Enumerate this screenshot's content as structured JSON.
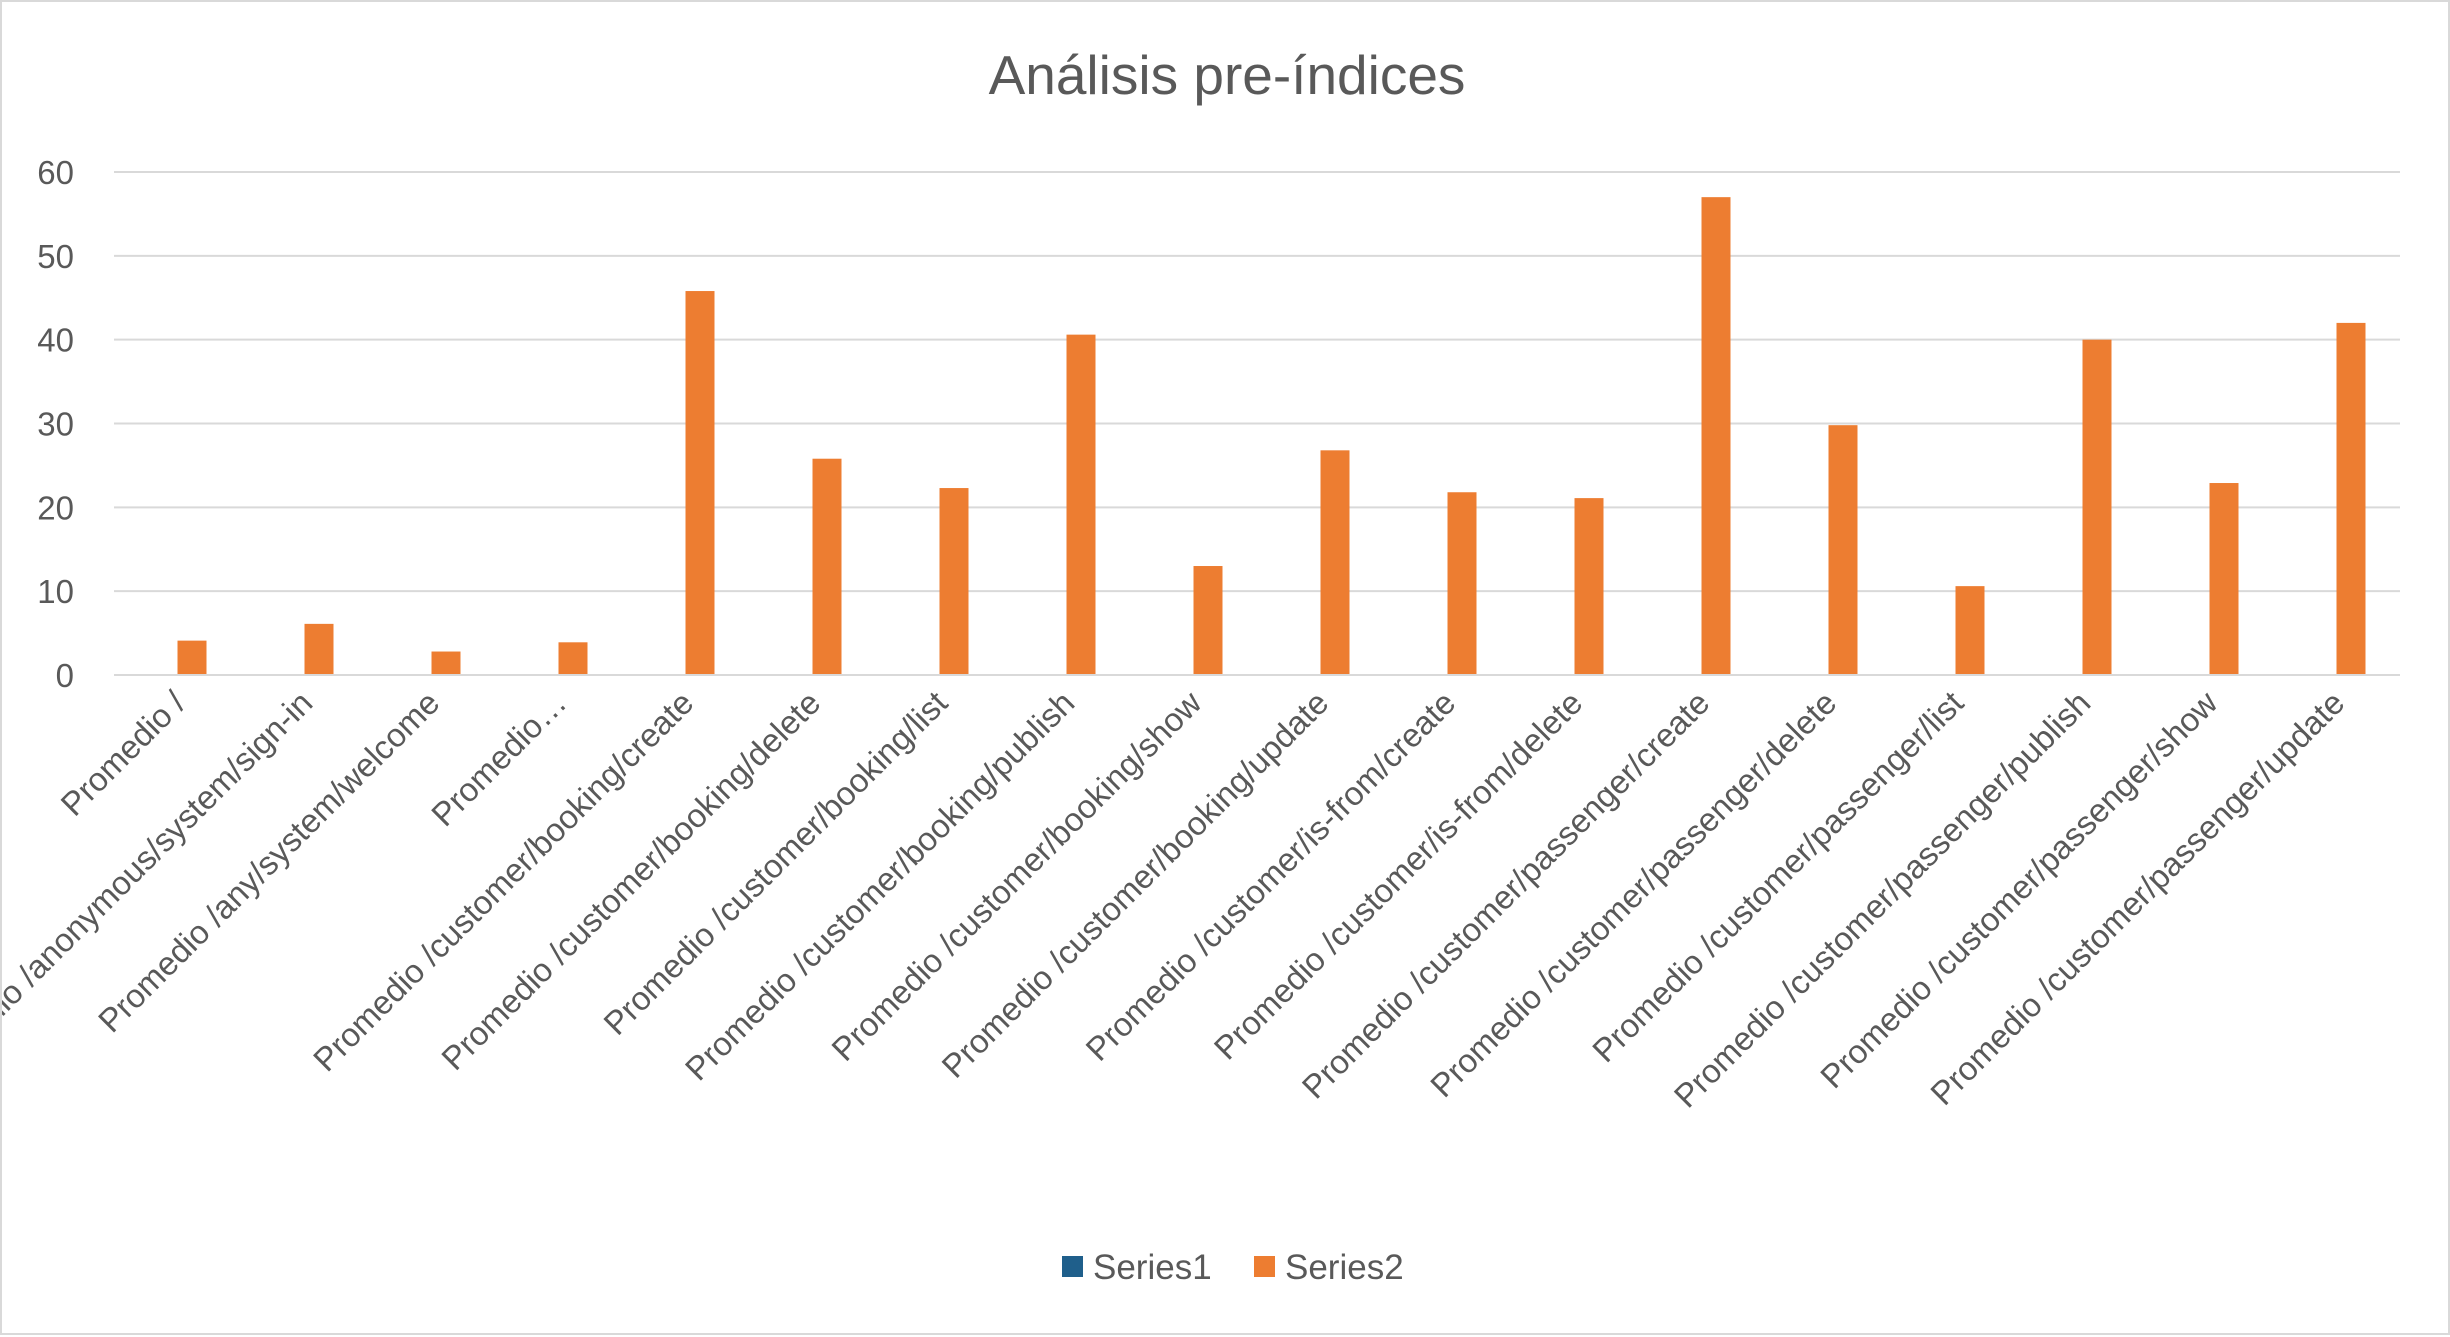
{
  "chart_data": {
    "type": "bar",
    "title": "Análisis pre-índices",
    "xlabel": "",
    "ylabel": "",
    "ylim": [
      0,
      60
    ],
    "yticks": [
      0,
      10,
      20,
      30,
      40,
      50,
      60
    ],
    "grid": true,
    "legend_position": "bottom",
    "categories": [
      "Promedio /",
      "Promedio /anonymous/system/sign-in",
      "Promedio /any/system/welcome",
      "Promedio…",
      "Promedio /customer/booking/create",
      "Promedio /customer/booking/delete",
      "Promedio /customer/booking/list",
      "Promedio /customer/booking/publish",
      "Promedio /customer/booking/show",
      "Promedio /customer/booking/update",
      "Promedio /customer/is-from/create",
      "Promedio /customer/is-from/delete",
      "Promedio /customer/passenger/create",
      "Promedio /customer/passenger/delete",
      "Promedio /customer/passenger/list",
      "Promedio /customer/passenger/publish",
      "Promedio /customer/passenger/show",
      "Promedio /customer/passenger/update"
    ],
    "series": [
      {
        "name": "Series1",
        "color": "#1f5f8b",
        "values": [
          0,
          0,
          0,
          0,
          0,
          0,
          0,
          0,
          0,
          0,
          0,
          0,
          0,
          0,
          0,
          0,
          0,
          0
        ]
      },
      {
        "name": "Series2",
        "color": "#ed7d31",
        "values": [
          4.1,
          6.1,
          2.8,
          3.9,
          45.8,
          25.8,
          22.3,
          40.6,
          13,
          26.8,
          21.8,
          21.1,
          57,
          29.8,
          10.6,
          40,
          22.9,
          42
        ]
      }
    ]
  }
}
